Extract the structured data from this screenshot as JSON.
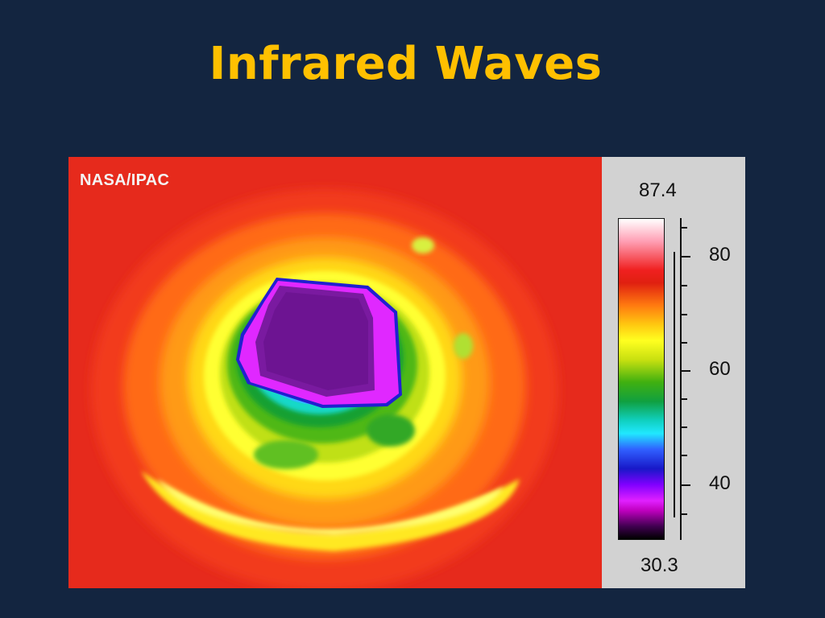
{
  "slide": {
    "title": "Infrared Waves"
  },
  "image": {
    "credit": "NASA/IPAC",
    "colors": {
      "background": "#132540",
      "title": "#ffc000",
      "hot": "#e8201a",
      "cold": "#7a1aa0"
    }
  },
  "temperature_scale": {
    "max": "87.4",
    "min": "30.3",
    "tick_labels": [
      "80",
      "60",
      "40"
    ]
  }
}
